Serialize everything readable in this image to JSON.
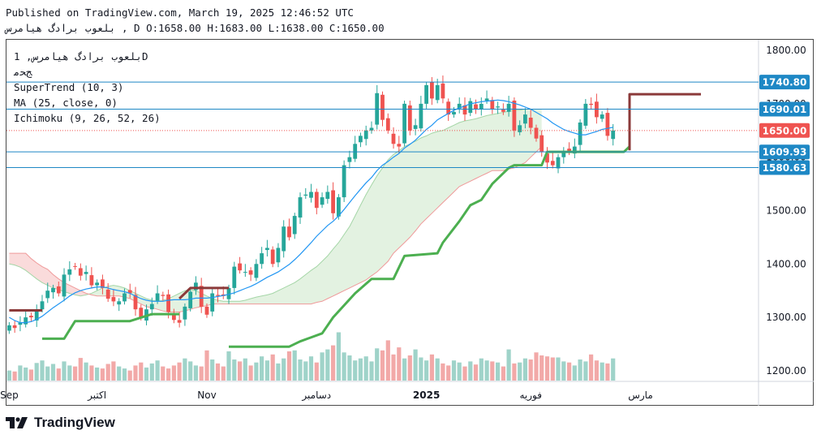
{
  "header": {
    "line1": "Published on TradingView.com, March 19, 2025 12:46:52 UTC",
    "line2": "بلعوب برادگ هیامرس , D O:1658.00 H:1683.00 L:1638.00 C:1650.00"
  },
  "legend": {
    "symbol": "بلعوب برادگ هیامرس, 1D",
    "exchange": "ﺞﺤﻣ",
    "supertrend": "SuperTrend (10, 3)",
    "ma": "MA (25, close, 0)",
    "ichimoku": "Ichimoku (9, 26, 52, 26)"
  },
  "footer": {
    "brand": "TradingView"
  },
  "colors": {
    "up": "#26a69a",
    "down": "#ef5350",
    "up_volume": "#9fd3c9",
    "down_volume": "#f2a9a8",
    "ma": "#2196f3",
    "supertrend_up": "#4caf50",
    "supertrend_down": "#8b3a3a",
    "cloud_bull": "#e3f2e1",
    "cloud_bear": "#fadbdb",
    "span_a": "#a5d6a7",
    "span_b": "#ef9a9a",
    "hline": "#1e88c5",
    "last": "#ef5350"
  },
  "chart_data": {
    "type": "candlestick",
    "y_axis": {
      "min": 1180,
      "max": 1820,
      "ticks": [
        1200,
        1300,
        1400,
        1500,
        1600,
        1700,
        1800
      ],
      "tick_labels": [
        "1200.00",
        "1300.00",
        "1400.00",
        "1500.00",
        "1600.00",
        "1700.00",
        "1800.00"
      ]
    },
    "x_labels": [
      "Sep",
      "اکتبر",
      "Nov",
      "دسامبر",
      "2025",
      "فوریه",
      "مارس"
    ],
    "x_label_days": [
      0,
      16,
      36,
      56,
      76,
      95,
      115
    ],
    "total_days": 137,
    "horizontal_levels": [
      {
        "value": 1740.8,
        "label": "1740.80",
        "color": "#1e88c5"
      },
      {
        "value": 1690.01,
        "label": "1690.01",
        "color": "#1e88c5"
      },
      {
        "value": 1609.93,
        "label": "1609.93",
        "color": "#1e88c5"
      },
      {
        "value": 1580.63,
        "label": "1580.63",
        "color": "#1e88c5"
      }
    ],
    "last_price": {
      "value": 1650.0,
      "label": "1650.00"
    },
    "ohlc_closes": [
      1285,
      1280,
      1290,
      1300,
      1300,
      1315,
      1330,
      1350,
      1355,
      1345,
      1380,
      1390,
      1395,
      1378,
      1385,
      1360,
      1365,
      1355,
      1335,
      1330,
      1330,
      1345,
      1345,
      1315,
      1300,
      1315,
      1325,
      1345,
      1340,
      1310,
      1295,
      1290,
      1320,
      1348,
      1365,
      1320,
      1305,
      1345,
      1340,
      1340,
      1355,
      1395,
      1388,
      1385,
      1380,
      1400,
      1420,
      1430,
      1400,
      1430,
      1470,
      1450,
      1490,
      1525,
      1530,
      1535,
      1505,
      1525,
      1535,
      1495,
      1525,
      1585,
      1600,
      1625,
      1640,
      1650,
      1655,
      1720,
      1670,
      1650,
      1625,
      1620,
      1700,
      1650,
      1660,
      1700,
      1735,
      1710,
      1735,
      1710,
      1680,
      1685,
      1700,
      1680,
      1705,
      1690,
      1700,
      1710,
      1690,
      1695,
      1685,
      1700,
      1650,
      1660,
      1680,
      1655,
      1635,
      1610,
      1590,
      1585,
      1600,
      1610,
      1610,
      1620,
      1665,
      1700,
      1698,
      1675,
      1680,
      1640,
      1650
    ],
    "supertrend": {
      "segments": [
        {
          "trend": "down",
          "points": [
            [
              0,
              1313
            ],
            [
              6,
              1313
            ]
          ]
        },
        {
          "trend": "up",
          "points": [
            [
              6,
              1260
            ],
            [
              10,
              1260
            ],
            [
              12,
              1293
            ],
            [
              22,
              1293
            ],
            [
              26,
              1306
            ],
            [
              31,
              1306
            ]
          ]
        },
        {
          "trend": "down",
          "points": [
            [
              31,
              1335
            ],
            [
              33,
              1355
            ],
            [
              40,
              1355
            ]
          ]
        },
        {
          "trend": "up",
          "points": [
            [
              40,
              1245
            ],
            [
              51,
              1245
            ],
            [
              53,
              1255
            ],
            [
              57,
              1270
            ],
            [
              59,
              1300
            ],
            [
              63,
              1345
            ],
            [
              66,
              1372
            ],
            [
              70,
              1372
            ],
            [
              72,
              1415
            ],
            [
              78,
              1420
            ],
            [
              79,
              1440
            ],
            [
              82,
              1480
            ],
            [
              84,
              1510
            ],
            [
              86,
              1520
            ],
            [
              88,
              1550
            ],
            [
              91,
              1580
            ],
            [
              92,
              1585
            ],
            [
              97,
              1585
            ],
            [
              98,
              1610
            ],
            [
              101,
              1610
            ],
            [
              108,
              1610
            ],
            [
              112,
              1610
            ],
            [
              113,
              1620
            ]
          ]
        },
        {
          "trend": "down",
          "points": [
            [
              113,
              1613
            ],
            [
              113,
              1718
            ],
            [
              126,
              1718
            ]
          ]
        }
      ]
    },
    "ma25": [
      1300,
      1294,
      1290,
      1290,
      1292,
      1296,
      1302,
      1310,
      1318,
      1325,
      1332,
      1340,
      1346,
      1350,
      1353,
      1355,
      1357,
      1357,
      1355,
      1352,
      1350,
      1348,
      1345,
      1340,
      1335,
      1332,
      1330,
      1330,
      1330,
      1332,
      1333,
      1333,
      1333,
      1334,
      1336,
      1336,
      1336,
      1337,
      1339,
      1341,
      1343,
      1346,
      1350,
      1354,
      1358,
      1363,
      1369,
      1375,
      1380,
      1385,
      1392,
      1399,
      1408,
      1418,
      1429,
      1440,
      1452,
      1462,
      1472,
      1480,
      1490,
      1502,
      1515,
      1528,
      1540,
      1552,
      1562,
      1575,
      1585,
      1592,
      1600,
      1607,
      1617,
      1624,
      1632,
      1642,
      1652,
      1660,
      1670,
      1676,
      1682,
      1688,
      1692,
      1696,
      1700,
      1702,
      1704,
      1705,
      1706,
      1707,
      1706,
      1704,
      1701,
      1698,
      1694,
      1690,
      1684,
      1678,
      1672,
      1664,
      1658,
      1652,
      1648,
      1645,
      1642,
      1642,
      1645,
      1648,
      1652,
      1654,
      1656
    ],
    "cloud_span_a": [
      1400,
      1398,
      1394,
      1388,
      1380,
      1372,
      1365,
      1360,
      1355,
      1352,
      1348,
      1345,
      1342,
      1340,
      1342,
      1345,
      1350,
      1355,
      1358,
      1360,
      1358,
      1355,
      1350,
      1345,
      1340,
      1335,
      1332,
      1330,
      1332,
      1335,
      1340,
      1345,
      1350,
      1352,
      1350,
      1345,
      1340,
      1335,
      1332,
      1330,
      1330,
      1330,
      1330,
      1332,
      1335,
      1338,
      1340,
      1342,
      1345,
      1350,
      1355,
      1360,
      1365,
      1372,
      1380,
      1388,
      1395,
      1405,
      1415,
      1428,
      1440,
      1455,
      1470,
      1490,
      1510,
      1530,
      1548,
      1565,
      1580,
      1595,
      1605,
      1612,
      1620,
      1625,
      1630,
      1636,
      1640,
      1645,
      1648,
      1650,
      1655,
      1660,
      1665,
      1668,
      1670,
      1672,
      1675,
      1678,
      1680,
      1682,
      1684,
      1686,
      1688,
      1688,
      1690,
      1690,
      1690,
      1690
    ],
    "cloud_span_b": [
      1420,
      1420,
      1420,
      1420,
      1410,
      1402,
      1395,
      1390,
      1380,
      1372,
      1365,
      1360,
      1355,
      1350,
      1345,
      1342,
      1340,
      1340,
      1340,
      1340,
      1340,
      1338,
      1335,
      1330,
      1325,
      1320,
      1318,
      1315,
      1312,
      1310,
      1310,
      1310,
      1312,
      1315,
      1318,
      1320,
      1322,
      1325,
      1325,
      1325,
      1325,
      1325,
      1325,
      1325,
      1325,
      1325,
      1325,
      1325,
      1325,
      1325,
      1325,
      1325,
      1325,
      1325,
      1325,
      1325,
      1328,
      1330,
      1335,
      1340,
      1345,
      1350,
      1355,
      1360,
      1365,
      1370,
      1378,
      1385,
      1395,
      1405,
      1420,
      1430,
      1440,
      1450,
      1462,
      1475,
      1485,
      1495,
      1505,
      1515,
      1525,
      1535,
      1545,
      1550,
      1555,
      1560,
      1565,
      1570,
      1575,
      1575,
      1575,
      1578,
      1580,
      1585,
      1590,
      1600,
      1610,
      1620
    ]
  }
}
